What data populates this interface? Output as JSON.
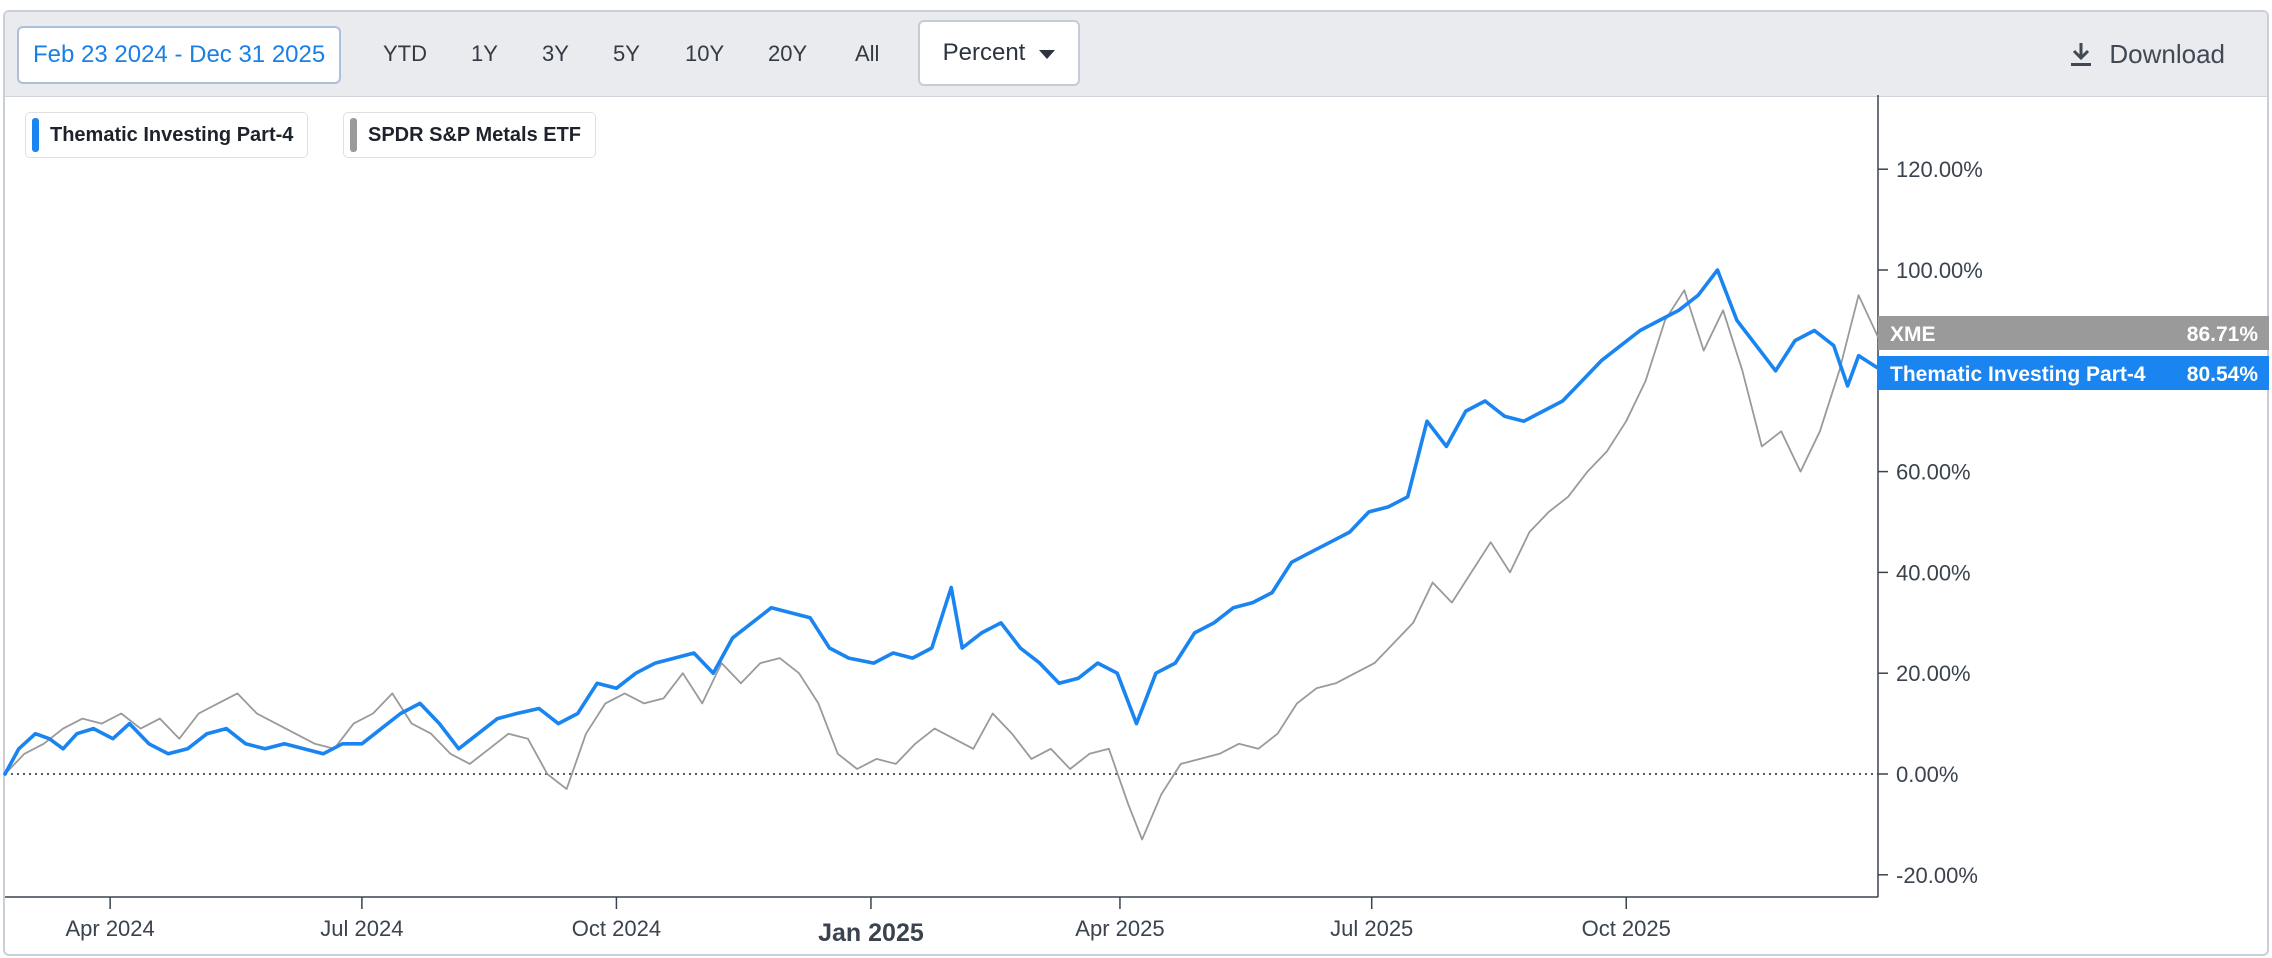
{
  "toolbar": {
    "date_range": "Feb 23 2024 - Dec 31 2025",
    "ranges": [
      "YTD",
      "1Y",
      "3Y",
      "5Y",
      "10Y",
      "20Y",
      "All"
    ],
    "unit": "Percent",
    "download_label": "Download"
  },
  "colors": {
    "portfolio": "#1a84f0",
    "benchmark": "#9a9a9a",
    "axis": "#3b434e",
    "zero_line": "#3b434e"
  },
  "chart_data": {
    "type": "line",
    "ylim": [
      -25,
      135
    ],
    "y_ticks": [
      "120.00%",
      "100.00%",
      "60.00%",
      "40.00%",
      "20.00%",
      "0.00%",
      "-20.00%"
    ],
    "y_tick_values": [
      120,
      100,
      60,
      40,
      20,
      0,
      -20
    ],
    "x_ticks": [
      "Apr 2024",
      "Jul 2024",
      "Oct 2024",
      "Jan 2025",
      "Apr 2025",
      "Jul 2025",
      "Oct 2025"
    ],
    "x_tick_dates": [
      "2024-04-01",
      "2024-07-01",
      "2024-10-01",
      "2025-01-01",
      "2025-04-01",
      "2025-07-01",
      "2025-10-01"
    ],
    "x_major_tick": "Jan 2025",
    "x_range": [
      "2024-02-23",
      "2025-12-31"
    ],
    "grid": false,
    "legend_position": "top-left",
    "series": [
      {
        "name": "Thematic Investing Part-4",
        "tag_label": "Thematic Investing Part-4",
        "last_value": "80.54%",
        "points": [
          [
            "2024-02-23",
            0
          ],
          [
            "2024-02-28",
            5
          ],
          [
            "2024-03-05",
            8
          ],
          [
            "2024-03-10",
            7
          ],
          [
            "2024-03-15",
            5
          ],
          [
            "2024-03-20",
            8
          ],
          [
            "2024-03-26",
            9
          ],
          [
            "2024-04-02",
            7
          ],
          [
            "2024-04-08",
            10
          ],
          [
            "2024-04-15",
            6
          ],
          [
            "2024-04-22",
            4
          ],
          [
            "2024-04-29",
            5
          ],
          [
            "2024-05-06",
            8
          ],
          [
            "2024-05-13",
            9
          ],
          [
            "2024-05-20",
            6
          ],
          [
            "2024-05-27",
            5
          ],
          [
            "2024-06-03",
            6
          ],
          [
            "2024-06-10",
            5
          ],
          [
            "2024-06-17",
            4
          ],
          [
            "2024-06-24",
            6
          ],
          [
            "2024-07-01",
            6
          ],
          [
            "2024-07-08",
            9
          ],
          [
            "2024-07-15",
            12
          ],
          [
            "2024-07-22",
            14
          ],
          [
            "2024-07-29",
            10
          ],
          [
            "2024-08-05",
            5
          ],
          [
            "2024-08-12",
            8
          ],
          [
            "2024-08-19",
            11
          ],
          [
            "2024-08-26",
            12
          ],
          [
            "2024-09-03",
            13
          ],
          [
            "2024-09-10",
            10
          ],
          [
            "2024-09-17",
            12
          ],
          [
            "2024-09-24",
            18
          ],
          [
            "2024-10-01",
            17
          ],
          [
            "2024-10-08",
            20
          ],
          [
            "2024-10-15",
            22
          ],
          [
            "2024-10-22",
            23
          ],
          [
            "2024-10-29",
            24
          ],
          [
            "2024-11-05",
            20
          ],
          [
            "2024-11-12",
            27
          ],
          [
            "2024-11-19",
            30
          ],
          [
            "2024-11-26",
            33
          ],
          [
            "2024-12-03",
            32
          ],
          [
            "2024-12-10",
            31
          ],
          [
            "2024-12-17",
            25
          ],
          [
            "2024-12-24",
            23
          ],
          [
            "2025-01-02",
            22
          ],
          [
            "2025-01-09",
            24
          ],
          [
            "2025-01-16",
            23
          ],
          [
            "2025-01-23",
            25
          ],
          [
            "2025-01-30",
            37
          ],
          [
            "2025-02-03",
            25
          ],
          [
            "2025-02-10",
            28
          ],
          [
            "2025-02-17",
            30
          ],
          [
            "2025-02-24",
            25
          ],
          [
            "2025-03-03",
            22
          ],
          [
            "2025-03-10",
            18
          ],
          [
            "2025-03-17",
            19
          ],
          [
            "2025-03-24",
            22
          ],
          [
            "2025-03-31",
            20
          ],
          [
            "2025-04-07",
            10
          ],
          [
            "2025-04-14",
            20
          ],
          [
            "2025-04-21",
            22
          ],
          [
            "2025-04-28",
            28
          ],
          [
            "2025-05-05",
            30
          ],
          [
            "2025-05-12",
            33
          ],
          [
            "2025-05-19",
            34
          ],
          [
            "2025-05-26",
            36
          ],
          [
            "2025-06-02",
            42
          ],
          [
            "2025-06-09",
            44
          ],
          [
            "2025-06-16",
            46
          ],
          [
            "2025-06-23",
            48
          ],
          [
            "2025-06-30",
            52
          ],
          [
            "2025-07-07",
            53
          ],
          [
            "2025-07-14",
            55
          ],
          [
            "2025-07-21",
            70
          ],
          [
            "2025-07-28",
            65
          ],
          [
            "2025-08-04",
            72
          ],
          [
            "2025-08-11",
            74
          ],
          [
            "2025-08-18",
            71
          ],
          [
            "2025-08-25",
            70
          ],
          [
            "2025-09-01",
            72
          ],
          [
            "2025-09-08",
            74
          ],
          [
            "2025-09-15",
            78
          ],
          [
            "2025-09-22",
            82
          ],
          [
            "2025-09-29",
            85
          ],
          [
            "2025-10-06",
            88
          ],
          [
            "2025-10-13",
            90
          ],
          [
            "2025-10-20",
            92
          ],
          [
            "2025-10-27",
            95
          ],
          [
            "2025-11-03",
            100
          ],
          [
            "2025-11-10",
            90
          ],
          [
            "2025-11-17",
            85
          ],
          [
            "2025-11-24",
            80
          ],
          [
            "2025-12-01",
            86
          ],
          [
            "2025-12-08",
            88
          ],
          [
            "2025-12-15",
            85
          ],
          [
            "2025-12-20",
            77
          ],
          [
            "2025-12-24",
            83
          ],
          [
            "2025-12-31",
            80.54
          ]
        ]
      },
      {
        "name": "SPDR S&P Metals ETF",
        "tag_label": "XME",
        "last_value": "86.71%",
        "points": [
          [
            "2024-02-23",
            0
          ],
          [
            "2024-03-01",
            4
          ],
          [
            "2024-03-08",
            6
          ],
          [
            "2024-03-15",
            9
          ],
          [
            "2024-03-22",
            11
          ],
          [
            "2024-03-29",
            10
          ],
          [
            "2024-04-05",
            12
          ],
          [
            "2024-04-12",
            9
          ],
          [
            "2024-04-19",
            11
          ],
          [
            "2024-04-26",
            7
          ],
          [
            "2024-05-03",
            12
          ],
          [
            "2024-05-10",
            14
          ],
          [
            "2024-05-17",
            16
          ],
          [
            "2024-05-24",
            12
          ],
          [
            "2024-05-31",
            10
          ],
          [
            "2024-06-07",
            8
          ],
          [
            "2024-06-14",
            6
          ],
          [
            "2024-06-21",
            5
          ],
          [
            "2024-06-28",
            10
          ],
          [
            "2024-07-05",
            12
          ],
          [
            "2024-07-12",
            16
          ],
          [
            "2024-07-19",
            10
          ],
          [
            "2024-07-26",
            8
          ],
          [
            "2024-08-02",
            4
          ],
          [
            "2024-08-09",
            2
          ],
          [
            "2024-08-16",
            5
          ],
          [
            "2024-08-23",
            8
          ],
          [
            "2024-08-30",
            7
          ],
          [
            "2024-09-06",
            0
          ],
          [
            "2024-09-13",
            -3
          ],
          [
            "2024-09-20",
            8
          ],
          [
            "2024-09-27",
            14
          ],
          [
            "2024-10-04",
            16
          ],
          [
            "2024-10-11",
            14
          ],
          [
            "2024-10-18",
            15
          ],
          [
            "2024-10-25",
            20
          ],
          [
            "2024-11-01",
            14
          ],
          [
            "2024-11-08",
            22
          ],
          [
            "2024-11-15",
            18
          ],
          [
            "2024-11-22",
            22
          ],
          [
            "2024-11-29",
            23
          ],
          [
            "2024-12-06",
            20
          ],
          [
            "2024-12-13",
            14
          ],
          [
            "2024-12-20",
            4
          ],
          [
            "2024-12-27",
            1
          ],
          [
            "2025-01-03",
            3
          ],
          [
            "2025-01-10",
            2
          ],
          [
            "2025-01-17",
            6
          ],
          [
            "2025-01-24",
            9
          ],
          [
            "2025-01-31",
            7
          ],
          [
            "2025-02-07",
            5
          ],
          [
            "2025-02-14",
            12
          ],
          [
            "2025-02-21",
            8
          ],
          [
            "2025-02-28",
            3
          ],
          [
            "2025-03-07",
            5
          ],
          [
            "2025-03-14",
            1
          ],
          [
            "2025-03-21",
            4
          ],
          [
            "2025-03-28",
            5
          ],
          [
            "2025-04-04",
            -6
          ],
          [
            "2025-04-09",
            -13
          ],
          [
            "2025-04-16",
            -4
          ],
          [
            "2025-04-23",
            2
          ],
          [
            "2025-04-30",
            3
          ],
          [
            "2025-05-07",
            4
          ],
          [
            "2025-05-14",
            6
          ],
          [
            "2025-05-21",
            5
          ],
          [
            "2025-05-28",
            8
          ],
          [
            "2025-06-04",
            14
          ],
          [
            "2025-06-11",
            17
          ],
          [
            "2025-06-18",
            18
          ],
          [
            "2025-06-25",
            20
          ],
          [
            "2025-07-02",
            22
          ],
          [
            "2025-07-09",
            26
          ],
          [
            "2025-07-16",
            30
          ],
          [
            "2025-07-23",
            38
          ],
          [
            "2025-07-30",
            34
          ],
          [
            "2025-08-06",
            40
          ],
          [
            "2025-08-13",
            46
          ],
          [
            "2025-08-20",
            40
          ],
          [
            "2025-08-27",
            48
          ],
          [
            "2025-09-03",
            52
          ],
          [
            "2025-09-10",
            55
          ],
          [
            "2025-09-17",
            60
          ],
          [
            "2025-09-24",
            64
          ],
          [
            "2025-10-01",
            70
          ],
          [
            "2025-10-08",
            78
          ],
          [
            "2025-10-15",
            90
          ],
          [
            "2025-10-22",
            96
          ],
          [
            "2025-10-29",
            84
          ],
          [
            "2025-11-05",
            92
          ],
          [
            "2025-11-12",
            80
          ],
          [
            "2025-11-19",
            65
          ],
          [
            "2025-11-26",
            68
          ],
          [
            "2025-12-03",
            60
          ],
          [
            "2025-12-10",
            68
          ],
          [
            "2025-12-17",
            80
          ],
          [
            "2025-12-24",
            95
          ],
          [
            "2025-12-31",
            86.71
          ]
        ]
      }
    ]
  }
}
